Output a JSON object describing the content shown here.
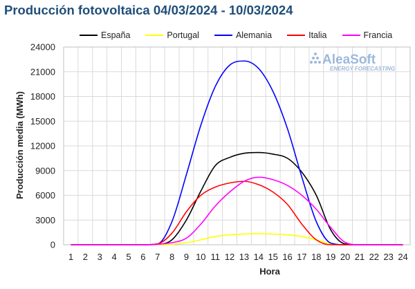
{
  "chart_data": {
    "type": "line",
    "title": "Producción fotovoltaica 04/03/2024 - 10/03/2024",
    "xlabel": "Hora",
    "ylabel": "Producción media (MWh)",
    "xlim": [
      1,
      24
    ],
    "ylim": [
      0,
      24000
    ],
    "yticks": [
      0,
      3000,
      6000,
      9000,
      12000,
      15000,
      18000,
      21000,
      24000
    ],
    "grid": true,
    "legend_position": "top",
    "x": [
      1,
      2,
      3,
      4,
      5,
      6,
      7,
      8,
      9,
      10,
      11,
      12,
      13,
      14,
      15,
      16,
      17,
      18,
      19,
      20,
      21,
      22,
      23,
      24
    ],
    "series": [
      {
        "name": "España",
        "color": "#000000",
        "values": [
          0,
          0,
          0,
          0,
          0,
          0,
          30,
          600,
          3000,
          6500,
          9600,
          10600,
          11100,
          11200,
          11000,
          10500,
          8800,
          6000,
          1800,
          100,
          0,
          0,
          0,
          0
        ]
      },
      {
        "name": "Portugal",
        "color": "#ffff00",
        "values": [
          0,
          0,
          0,
          0,
          0,
          0,
          0,
          50,
          250,
          600,
          1000,
          1200,
          1300,
          1350,
          1300,
          1200,
          1000,
          600,
          100,
          0,
          0,
          0,
          0,
          0
        ]
      },
      {
        "name": "Alemania",
        "color": "#0000ff",
        "values": [
          0,
          0,
          0,
          0,
          0,
          0,
          100,
          2800,
          8500,
          14500,
          19200,
          21800,
          22300,
          21400,
          18600,
          14100,
          8200,
          2800,
          200,
          0,
          0,
          0,
          0,
          0
        ]
      },
      {
        "name": "Italia",
        "color": "#ff0000",
        "values": [
          0,
          0,
          0,
          0,
          0,
          0,
          100,
          1400,
          4000,
          6000,
          7000,
          7500,
          7700,
          7300,
          6400,
          4900,
          2500,
          600,
          0,
          0,
          0,
          0,
          0,
          0
        ]
      },
      {
        "name": "Francia",
        "color": "#ff00ff",
        "values": [
          0,
          0,
          0,
          0,
          0,
          0,
          50,
          250,
          800,
          2500,
          4700,
          6400,
          7700,
          8200,
          7900,
          7200,
          6000,
          4300,
          2100,
          300,
          0,
          0,
          0,
          0
        ]
      }
    ]
  },
  "watermark": {
    "brand": "AleaSoft",
    "tagline": "ENERGY FORECASTING"
  }
}
